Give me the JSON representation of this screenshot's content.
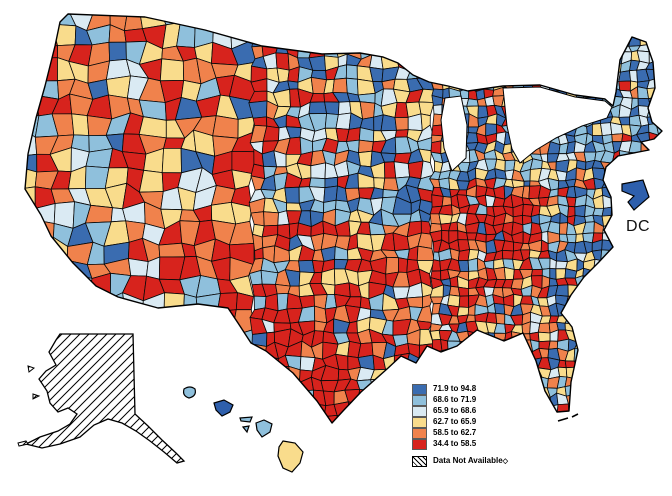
{
  "page": {
    "background": "#ffffff"
  },
  "legend": {
    "classes": [
      {
        "label": "71.9 to 94.8",
        "color": "#3A6CB0"
      },
      {
        "label": "68.6 to 71.9",
        "color": "#8FC0DC"
      },
      {
        "label": "65.9 to 68.6",
        "color": "#DAEAF3"
      },
      {
        "label": "62.7 to 65.9",
        "color": "#F9DC8C"
      },
      {
        "label": "58.5 to 62.7",
        "color": "#F0824C"
      },
      {
        "label": "34.4 to 58.5",
        "color": "#D7231D"
      }
    ],
    "no_data": {
      "label": "Data Not Available",
      "footnote": "◇"
    }
  },
  "map": {
    "dc_label": "DC",
    "dc_color": "#2E5FAC",
    "border_color": "#000000",
    "water_color": "#ffffff",
    "alaska_fill": "diagonal-hatch (data not available)",
    "hawaii_islands": [
      {
        "name": "Kauai",
        "color": "#8FC0DC"
      },
      {
        "name": "Oahu",
        "color": "#2E5FAC"
      },
      {
        "name": "Molokai",
        "color": "#8FC0DC"
      },
      {
        "name": "Lanai",
        "color": "#8FC0DC"
      },
      {
        "name": "Maui",
        "color": "#8FC0DC"
      },
      {
        "name": "Hawaii",
        "color": "#F9DC8C"
      }
    ]
  }
}
